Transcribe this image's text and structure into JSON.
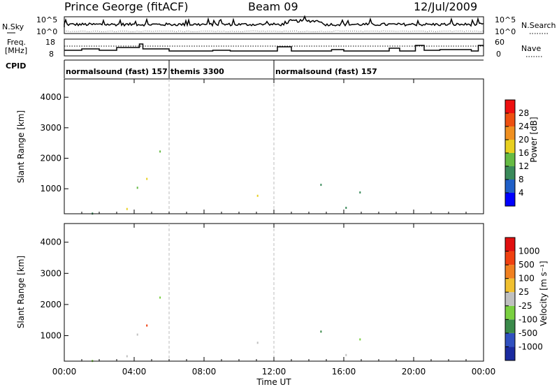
{
  "header": {
    "station": "Prince George (fitACF)",
    "beam": "Beam 09",
    "date": "12/Jul/2009"
  },
  "noise_panel": {
    "left_label": "N.Sky",
    "right_label": "N.Search",
    "left_ticks": [
      "10^5",
      "10^0"
    ],
    "right_ticks": [
      "10^5",
      "10^0"
    ]
  },
  "freq_panel": {
    "left_label_line1": "Freq.",
    "left_label_line2": "[MHz]",
    "left_ticks": [
      "18",
      "8"
    ],
    "right_label": "Nave",
    "right_ticks": [
      "60",
      "0"
    ]
  },
  "cpid": {
    "label": "CPID",
    "segments": [
      {
        "start_hour": 0,
        "end_hour": 6,
        "text": "normalsound (fast) 157"
      },
      {
        "start_hour": 6,
        "end_hour": 12,
        "text": "themis 3300"
      },
      {
        "start_hour": 12,
        "end_hour": 24,
        "text": "normalsound (fast) 157"
      }
    ]
  },
  "chart_data": [
    {
      "type": "heatmap",
      "name": "power",
      "ylabel": "Slant Range [km]",
      "ylim": [
        180,
        4600
      ],
      "yticks": [
        "1000",
        "2000",
        "3000",
        "4000"
      ],
      "colorbar_label": "Power [dB]",
      "colorbar_ticks": [
        "4",
        "8",
        "12",
        "16",
        "20",
        "24",
        "28"
      ],
      "colorbar_colors": [
        "#0000ff",
        "#2060c8",
        "#3a8a5a",
        "#66bb44",
        "#e8d020",
        "#f09020",
        "#ee5010",
        "#ee1010"
      ]
    },
    {
      "type": "heatmap",
      "name": "velocity",
      "ylabel": "Slant Range [km]",
      "ylim": [
        180,
        4600
      ],
      "yticks": [
        "1000",
        "2000",
        "3000",
        "4000"
      ],
      "colorbar_label": "Velocity [m s⁻¹]",
      "colorbar_ticks": [
        "1000",
        "500",
        "100",
        "25",
        "-25",
        "-100",
        "-500",
        "-1000"
      ],
      "colorbar_colors": [
        "#1a2aa0",
        "#3050c0",
        "#3a8a4a",
        "#7ad040",
        "#c0c0c0",
        "#f0c030",
        "#f08020",
        "#f04010",
        "#e01010"
      ]
    }
  ],
  "x_axis": {
    "label": "Time UT",
    "ticks": [
      "00:00",
      "04:00",
      "08:00",
      "12:00",
      "16:00",
      "20:00",
      "00:00"
    ],
    "range_hours": [
      0,
      24
    ]
  }
}
